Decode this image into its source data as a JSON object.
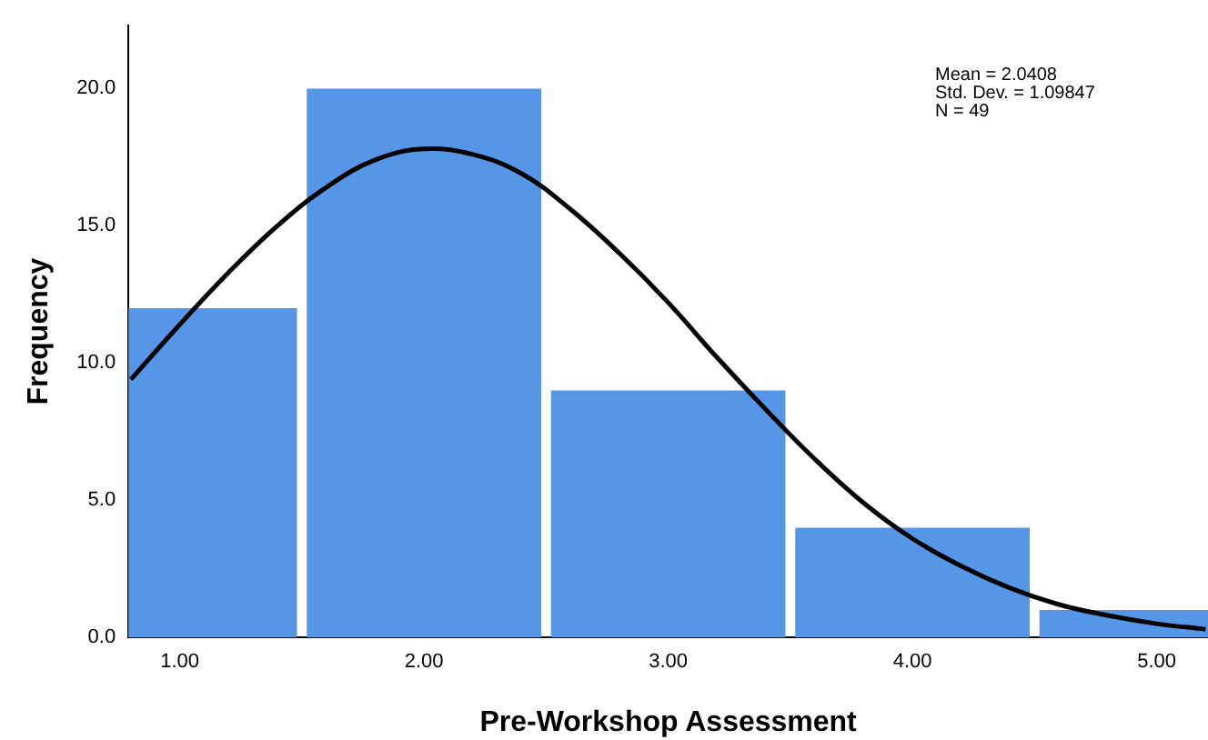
{
  "chart_data": {
    "type": "histogram",
    "xlabel": "Pre-Workshop Assessment",
    "ylabel": "Frequency",
    "bins": [
      0.5,
      1.5,
      2.5,
      3.5,
      4.5,
      5.5
    ],
    "values": [
      12,
      20,
      9,
      4,
      1
    ],
    "color": "#5596e6",
    "xlim": [
      0.79,
      5.21
    ],
    "xticks": [
      {
        "value": 1,
        "label": "1.00"
      },
      {
        "value": 2,
        "label": "2.00"
      },
      {
        "value": 3,
        "label": "3.00"
      },
      {
        "value": 4,
        "label": "4.00"
      },
      {
        "value": 5,
        "label": "5.00"
      }
    ],
    "ylim": [
      0,
      22.3
    ],
    "yticks": [
      {
        "value": 0,
        "label": "0.0"
      },
      {
        "value": 5,
        "label": "5.0"
      },
      {
        "value": 10,
        "label": "10.0"
      },
      {
        "value": 15,
        "label": "15.0"
      },
      {
        "value": 20,
        "label": "20.0"
      }
    ],
    "grid": false,
    "legend": false,
    "annotations": [
      "Mean = 2.0408",
      "Std. Dev. = 1.09847",
      "N = 49"
    ],
    "series": [
      {
        "type": "line",
        "color": "#000000",
        "x": [
          0.8,
          1.0,
          1.2,
          1.4,
          1.6,
          1.8,
          2.0,
          2.2,
          2.4,
          2.6,
          2.8,
          3.0,
          3.2,
          3.4,
          3.6,
          3.8,
          4.0,
          4.2,
          4.4,
          4.6,
          4.8,
          5.0,
          5.2
        ],
        "values": [
          9.4,
          11.4,
          13.3,
          15.0,
          16.4,
          17.4,
          17.8,
          17.6,
          16.9,
          15.6,
          14.0,
          12.2,
          10.2,
          8.3,
          6.5,
          4.9,
          3.6,
          2.6,
          1.8,
          1.2,
          0.8,
          0.5,
          0.3
        ]
      }
    ]
  }
}
